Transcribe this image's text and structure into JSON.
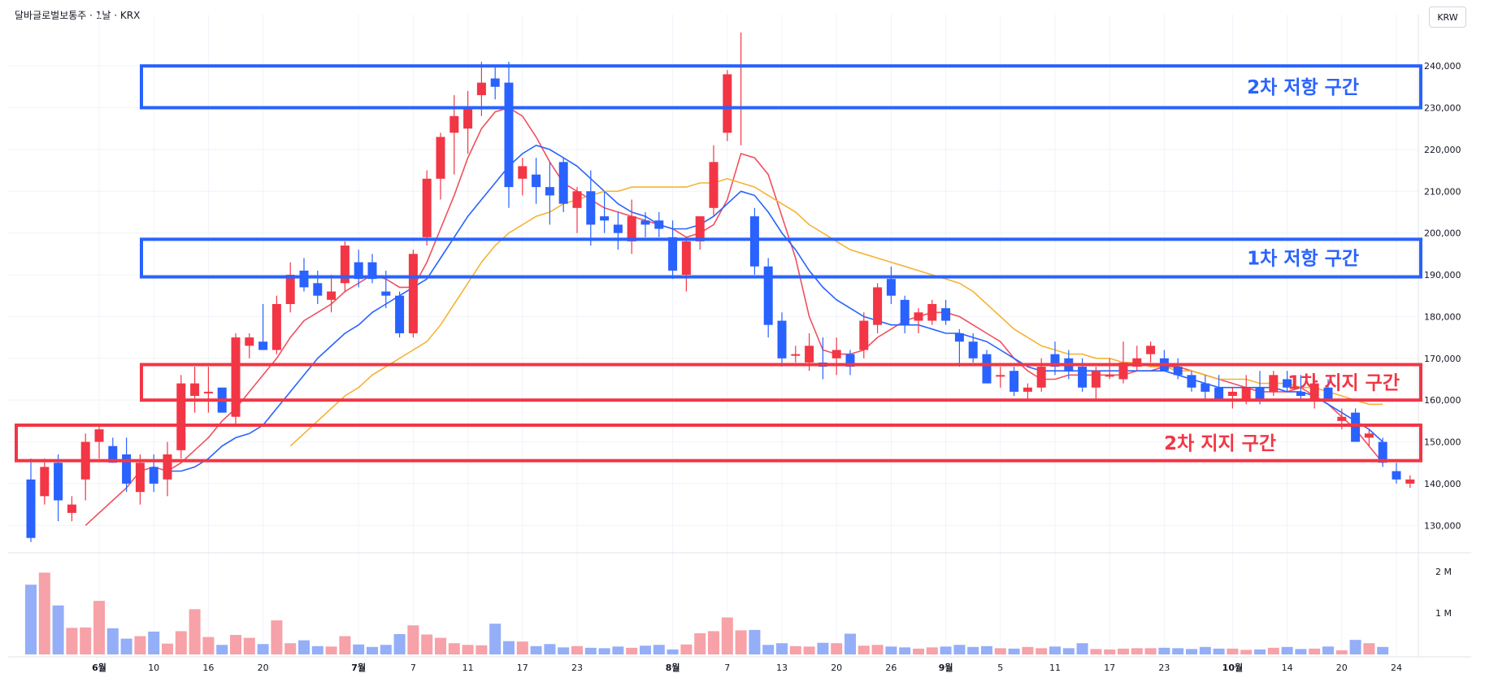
{
  "header": {
    "symbol": "달바글로벌보통주 · 1날 · KRX",
    "currency": "KRW"
  },
  "colors": {
    "up": "#f23645",
    "down": "#2962ff",
    "up_vol": "#f7a1a8",
    "down_vol": "#94aef7",
    "ma_fast": "#f0505e",
    "ma_mid": "#2962ff",
    "ma_slow": "#f5b335",
    "resistance": "#2962ff",
    "support": "#f23645"
  },
  "zones": [
    {
      "label": "2차 저항 구간",
      "type": "resistance",
      "from": 230000,
      "to": 240000,
      "start_idx": 6
    },
    {
      "label": "1차 저항 구간",
      "type": "resistance",
      "from": 189500,
      "to": 198500,
      "start_idx": 6
    },
    {
      "label": "1차 지지 구간",
      "type": "support",
      "from": 160000,
      "to": 168500,
      "start_idx": 6
    },
    {
      "label": "2차 지지 구간",
      "type": "support",
      "from": 145500,
      "to": 154000,
      "start_idx": 0
    }
  ],
  "chart_data": {
    "type": "candlestick",
    "price_ticks": [
      "130,000",
      "140,000",
      "150,000",
      "160,000",
      "170,000",
      "180,000",
      "190,000",
      "200,000",
      "210,000",
      "220,000",
      "230,000",
      "240,000"
    ],
    "price_tick_values": [
      130000,
      140000,
      150000,
      160000,
      170000,
      180000,
      190000,
      200000,
      210000,
      220000,
      230000,
      240000
    ],
    "ylim": [
      125000,
      248000
    ],
    "volume_ticks": [
      "1 M",
      "2 M"
    ],
    "volume_tick_values": [
      1000000,
      2000000
    ],
    "vol_max": 2350000,
    "x_labels": [
      {
        "idx": 5,
        "label": "6월"
      },
      {
        "idx": 9,
        "label": "10"
      },
      {
        "idx": 13,
        "label": "16"
      },
      {
        "idx": 17,
        "label": "20"
      },
      {
        "idx": 24,
        "label": "7월"
      },
      {
        "idx": 28,
        "label": "7"
      },
      {
        "idx": 32,
        "label": "11"
      },
      {
        "idx": 36,
        "label": "17"
      },
      {
        "idx": 40,
        "label": "23"
      },
      {
        "idx": 47,
        "label": "8월"
      },
      {
        "idx": 51,
        "label": "7"
      },
      {
        "idx": 55,
        "label": "13"
      },
      {
        "idx": 59,
        "label": "20"
      },
      {
        "idx": 63,
        "label": "26"
      },
      {
        "idx": 67,
        "label": "9월"
      },
      {
        "idx": 71,
        "label": "5"
      },
      {
        "idx": 75,
        "label": "11"
      },
      {
        "idx": 79,
        "label": "17"
      },
      {
        "idx": 83,
        "label": "23"
      },
      {
        "idx": 88,
        "label": "10월"
      },
      {
        "idx": 92,
        "label": "14"
      },
      {
        "idx": 96,
        "label": "20"
      },
      {
        "idx": 100,
        "label": "24"
      }
    ],
    "candles": [
      [
        141000,
        146000,
        126000,
        127000
      ],
      [
        137000,
        146000,
        135000,
        144000
      ],
      [
        145000,
        147000,
        131000,
        136000
      ],
      [
        133000,
        137000,
        131000,
        135000
      ],
      [
        141000,
        152000,
        136000,
        150000
      ],
      [
        150000,
        154000,
        146000,
        153000
      ],
      [
        149000,
        151000,
        145000,
        145000
      ],
      [
        147000,
        151000,
        138000,
        140000
      ],
      [
        138000,
        147000,
        135000,
        145000
      ],
      [
        144000,
        147000,
        138000,
        140000
      ],
      [
        141000,
        150000,
        137000,
        147000
      ],
      [
        148000,
        166000,
        146000,
        164000
      ],
      [
        161000,
        168000,
        157000,
        164000
      ],
      [
        162000,
        168000,
        157000,
        162000
      ],
      [
        163000,
        163000,
        157000,
        157000
      ],
      [
        156000,
        176000,
        154000,
        175000
      ],
      [
        173000,
        176000,
        170000,
        175000
      ],
      [
        174000,
        183000,
        172000,
        172000
      ],
      [
        172000,
        185000,
        171000,
        183000
      ],
      [
        183000,
        193000,
        181000,
        190000
      ],
      [
        191000,
        194000,
        186000,
        187000
      ],
      [
        188000,
        191000,
        183000,
        185000
      ],
      [
        184000,
        190000,
        181000,
        186000
      ],
      [
        188000,
        198000,
        186000,
        197000
      ],
      [
        193000,
        196000,
        187000,
        189000
      ],
      [
        193000,
        195000,
        188000,
        189000
      ],
      [
        186000,
        191000,
        182000,
        185000
      ],
      [
        185000,
        186000,
        175000,
        176000
      ],
      [
        176000,
        196000,
        175000,
        195000
      ],
      [
        199000,
        215000,
        197000,
        213000
      ],
      [
        213000,
        224000,
        208000,
        223000
      ],
      [
        224000,
        233000,
        214000,
        228000
      ],
      [
        225000,
        234000,
        219000,
        230000
      ],
      [
        233000,
        241000,
        228000,
        236000
      ],
      [
        237000,
        240000,
        232000,
        235000
      ],
      [
        236000,
        241000,
        206000,
        211000
      ],
      [
        213000,
        218000,
        209000,
        216000
      ],
      [
        214000,
        218000,
        207000,
        211000
      ],
      [
        211000,
        217000,
        202000,
        209000
      ],
      [
        217000,
        218000,
        205000,
        207000
      ],
      [
        206000,
        211000,
        200000,
        210000
      ],
      [
        210000,
        215000,
        197000,
        202000
      ],
      [
        204000,
        210000,
        200000,
        203000
      ],
      [
        202000,
        205000,
        196000,
        200000
      ],
      [
        198000,
        208000,
        195000,
        204000
      ],
      [
        203000,
        205000,
        199000,
        202000
      ],
      [
        203000,
        205000,
        199000,
        201000
      ],
      [
        199000,
        203000,
        189000,
        191000
      ],
      [
        190000,
        199000,
        186000,
        198000
      ],
      [
        198000,
        204000,
        196000,
        204000
      ],
      [
        206000,
        221000,
        204000,
        217000
      ],
      [
        224000,
        239000,
        222000,
        238000
      ],
      [
        240000,
        248000,
        221000,
        240000
      ],
      [
        204000,
        206000,
        190000,
        192000
      ],
      [
        192000,
        194000,
        175000,
        178000
      ],
      [
        179000,
        181000,
        168000,
        170000
      ],
      [
        171000,
        173000,
        169000,
        171000
      ],
      [
        169000,
        176000,
        167000,
        173000
      ],
      [
        169000,
        175000,
        165000,
        168000
      ],
      [
        170000,
        175000,
        166000,
        172000
      ],
      [
        171000,
        172000,
        166000,
        168000
      ],
      [
        172000,
        181000,
        170000,
        179000
      ],
      [
        178000,
        188000,
        176000,
        187000
      ],
      [
        189000,
        192000,
        183000,
        185000
      ],
      [
        184000,
        185000,
        176000,
        178000
      ],
      [
        179000,
        182000,
        176000,
        181000
      ],
      [
        179000,
        184000,
        178000,
        183000
      ],
      [
        182000,
        184000,
        178000,
        179000
      ],
      [
        176000,
        177000,
        168000,
        174000
      ],
      [
        174000,
        176000,
        169000,
        170000
      ],
      [
        171000,
        172000,
        164000,
        164000
      ],
      [
        166000,
        168000,
        163000,
        166000
      ],
      [
        167000,
        168000,
        161000,
        162000
      ],
      [
        162000,
        164000,
        160000,
        163000
      ],
      [
        163000,
        170000,
        162000,
        168000
      ],
      [
        171000,
        174000,
        166000,
        168000
      ],
      [
        170000,
        172000,
        165000,
        167000
      ],
      [
        168000,
        170000,
        162000,
        163000
      ],
      [
        163000,
        168000,
        160000,
        167000
      ],
      [
        166000,
        170000,
        165000,
        166000
      ],
      [
        165000,
        174000,
        164000,
        169000
      ],
      [
        168000,
        173000,
        167000,
        170000
      ],
      [
        171000,
        174000,
        169000,
        173000
      ],
      [
        170000,
        172000,
        167000,
        167000
      ],
      [
        168000,
        170000,
        165000,
        166000
      ],
      [
        166000,
        167000,
        162000,
        163000
      ],
      [
        164000,
        166000,
        160000,
        162000
      ],
      [
        163000,
        166000,
        160000,
        160000
      ],
      [
        161000,
        163000,
        158000,
        162000
      ],
      [
        160000,
        166000,
        159000,
        163000
      ],
      [
        163000,
        167000,
        159000,
        160000
      ],
      [
        162000,
        167000,
        161000,
        166000
      ],
      [
        165000,
        167000,
        162000,
        163000
      ],
      [
        162000,
        166000,
        160000,
        161000
      ],
      [
        160000,
        166000,
        158000,
        164000
      ],
      [
        163000,
        165000,
        160000,
        160000
      ],
      [
        155000,
        158000,
        153000,
        156000
      ],
      [
        157000,
        158000,
        150000,
        150000
      ],
      [
        151000,
        153000,
        149000,
        152000
      ],
      [
        150000,
        151000,
        144000,
        145000
      ],
      [
        143000,
        145000,
        140000,
        141000
      ],
      [
        140000,
        142000,
        139000,
        141000
      ]
    ],
    "volumes": [
      1680000,
      1970000,
      1180000,
      640000,
      650000,
      1290000,
      630000,
      380000,
      440000,
      550000,
      260000,
      560000,
      1090000,
      420000,
      230000,
      470000,
      400000,
      250000,
      820000,
      270000,
      340000,
      200000,
      190000,
      440000,
      240000,
      180000,
      230000,
      490000,
      700000,
      480000,
      400000,
      270000,
      230000,
      220000,
      740000,
      320000,
      310000,
      200000,
      250000,
      170000,
      200000,
      160000,
      150000,
      190000,
      160000,
      210000,
      230000,
      120000,
      240000,
      510000,
      560000,
      890000,
      580000,
      590000,
      230000,
      270000,
      200000,
      190000,
      280000,
      270000,
      500000,
      210000,
      230000,
      190000,
      170000,
      140000,
      170000,
      190000,
      230000,
      180000,
      200000,
      150000,
      140000,
      180000,
      150000,
      190000,
      150000,
      270000,
      130000,
      120000,
      140000,
      150000,
      150000,
      160000,
      150000,
      130000,
      180000,
      140000,
      140000,
      110000,
      120000,
      160000,
      180000,
      130000,
      140000,
      190000,
      100000,
      350000,
      270000,
      180000
    ],
    "ma_fast": [
      null,
      null,
      null,
      null,
      130000,
      133000,
      136000,
      139000,
      143000,
      144000,
      143000,
      145000,
      148000,
      151000,
      155000,
      158000,
      162000,
      166000,
      170000,
      175000,
      179000,
      181000,
      183000,
      186000,
      188000,
      190000,
      189000,
      187000,
      187000,
      193000,
      201000,
      209000,
      218000,
      225000,
      229000,
      230000,
      228000,
      223000,
      217000,
      212000,
      210000,
      208000,
      206000,
      205000,
      204000,
      203000,
      202000,
      201000,
      199000,
      200000,
      202000,
      208000,
      219000,
      218000,
      214000,
      204000,
      194000,
      180000,
      172000,
      171000,
      171000,
      172000,
      175000,
      177000,
      179000,
      180000,
      181000,
      181000,
      180000,
      178000,
      176000,
      174000,
      170000,
      167000,
      165000,
      165000,
      166000,
      166000,
      166000,
      166000,
      166000,
      167000,
      167000,
      168000,
      168000,
      167000,
      166000,
      165000,
      164000,
      163000,
      162000,
      162000,
      162000,
      163000,
      161000,
      159000,
      156000,
      153000,
      149000,
      145000
    ],
    "ma_mid": [
      null,
      null,
      null,
      null,
      null,
      null,
      null,
      null,
      null,
      null,
      143000,
      143000,
      144000,
      146000,
      149000,
      151000,
      152000,
      154000,
      158000,
      162000,
      166000,
      170000,
      173000,
      176000,
      178000,
      181000,
      183000,
      185000,
      187000,
      189000,
      194000,
      199000,
      204000,
      208000,
      212000,
      216000,
      219000,
      221000,
      220000,
      218000,
      216000,
      213000,
      210000,
      207000,
      205000,
      204000,
      202000,
      201000,
      201000,
      202000,
      204000,
      207000,
      210000,
      209000,
      205000,
      200000,
      196000,
      191000,
      187000,
      184000,
      182000,
      180000,
      179000,
      178000,
      178000,
      178000,
      177000,
      176000,
      176000,
      175000,
      174000,
      172000,
      170000,
      168000,
      167000,
      167000,
      167000,
      167000,
      167000,
      167000,
      167000,
      167000,
      167000,
      167000,
      166000,
      165000,
      164000,
      163000,
      163000,
      163000,
      163000,
      163000,
      162000,
      162000,
      161000,
      159000,
      157000,
      155000,
      153000,
      150000
    ],
    "ma_slow": [
      null,
      null,
      null,
      null,
      null,
      null,
      null,
      null,
      null,
      null,
      null,
      null,
      null,
      null,
      null,
      null,
      null,
      null,
      null,
      149000,
      152000,
      155000,
      158000,
      161000,
      163000,
      166000,
      168000,
      170000,
      172000,
      174000,
      178000,
      183000,
      188000,
      193000,
      197000,
      200000,
      202000,
      204000,
      205000,
      207000,
      208000,
      209000,
      210000,
      210000,
      211000,
      211000,
      211000,
      211000,
      211000,
      212000,
      212000,
      213000,
      212000,
      211000,
      209000,
      207000,
      205000,
      202000,
      200000,
      198000,
      196000,
      195000,
      194000,
      193000,
      192000,
      191000,
      190000,
      189000,
      188000,
      186000,
      183000,
      180000,
      177000,
      175000,
      173000,
      172000,
      171000,
      171000,
      170000,
      170000,
      169000,
      169000,
      168000,
      168000,
      167000,
      167000,
      166000,
      165000,
      165000,
      165000,
      164000,
      164000,
      164000,
      163000,
      163000,
      162000,
      161000,
      160000,
      159000,
      159000
    ]
  }
}
